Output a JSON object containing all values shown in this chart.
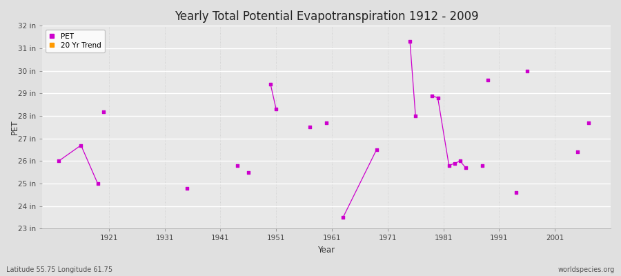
{
  "title": "Yearly Total Potential Evapotranspiration 1912 - 2009",
  "xlabel": "Year",
  "ylabel": "PET",
  "xlim": [
    1909,
    2011
  ],
  "ylim": [
    23,
    32
  ],
  "yticks": [
    23,
    24,
    25,
    26,
    27,
    28,
    29,
    30,
    31,
    32
  ],
  "ytick_labels": [
    "23 in",
    "24 in",
    "25 in",
    "26 in",
    "27 in",
    "28 in",
    "29 in",
    "30 in",
    "31 in",
    "32 in"
  ],
  "xticks": [
    1921,
    1931,
    1941,
    1951,
    1961,
    1971,
    1981,
    1991,
    2001
  ],
  "fig_bg_color": "#e0e0e0",
  "plot_bg_color": "#e8e8e8",
  "pet_color": "#cc00cc",
  "trend_color": "#ff9900",
  "grid_color_h": "#ffffff",
  "grid_color_v": "#cccccc",
  "pet_data": [
    [
      1912,
      26.0
    ],
    [
      1916,
      26.7
    ],
    [
      1919,
      25.0
    ],
    [
      1920,
      28.2
    ],
    [
      1935,
      24.8
    ],
    [
      1944,
      25.8
    ],
    [
      1946,
      25.5
    ],
    [
      1950,
      29.4
    ],
    [
      1951,
      28.3
    ],
    [
      1957,
      27.5
    ],
    [
      1960,
      27.7
    ],
    [
      1963,
      23.5
    ],
    [
      1969,
      26.5
    ],
    [
      1975,
      31.3
    ],
    [
      1976,
      28.0
    ],
    [
      1979,
      28.9
    ],
    [
      1980,
      28.8
    ],
    [
      1982,
      25.8
    ],
    [
      1983,
      25.9
    ],
    [
      1984,
      26.0
    ],
    [
      1985,
      25.7
    ],
    [
      1988,
      25.8
    ],
    [
      1989,
      29.6
    ],
    [
      1994,
      24.6
    ],
    [
      1996,
      30.0
    ],
    [
      2005,
      26.4
    ],
    [
      2007,
      27.7
    ]
  ],
  "pet_segments": [
    [
      [
        1912,
        26.0
      ],
      [
        1916,
        26.7
      ],
      [
        1919,
        25.0
      ]
    ],
    [
      [
        1950,
        29.4
      ],
      [
        1951,
        28.3
      ]
    ],
    [
      [
        1963,
        23.5
      ],
      [
        1969,
        26.5
      ]
    ],
    [
      [
        1975,
        31.3
      ],
      [
        1976,
        28.0
      ]
    ],
    [
      [
        1979,
        28.9
      ],
      [
        1980,
        28.8
      ],
      [
        1982,
        25.8
      ],
      [
        1983,
        25.9
      ],
      [
        1984,
        26.0
      ],
      [
        1985,
        25.7
      ]
    ]
  ],
  "footnote_left": "Latitude 55.75 Longitude 61.75",
  "footnote_right": "worldspecies.org"
}
